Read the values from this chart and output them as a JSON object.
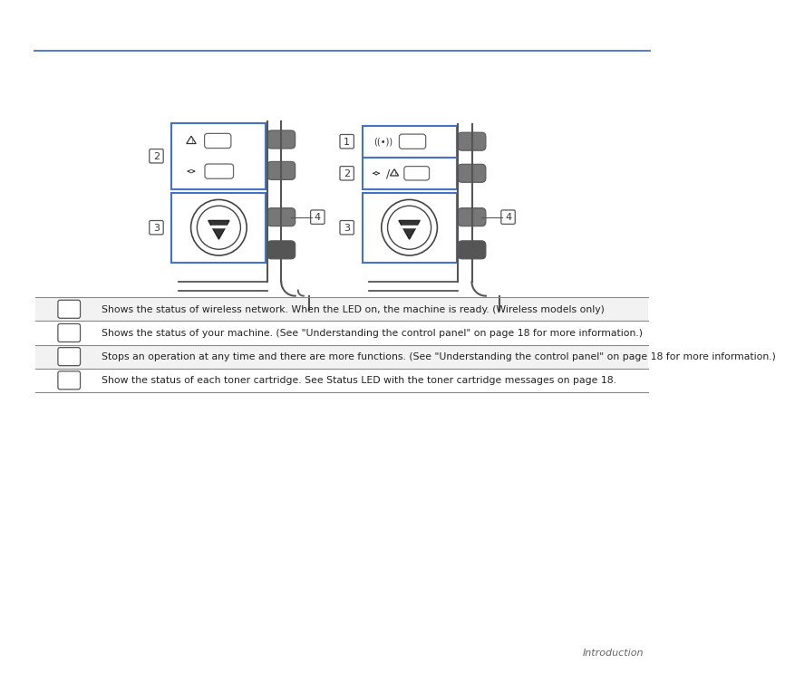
{
  "bg_color": "#ffffff",
  "line_color": "#4472c4",
  "text_color": "#000000",
  "header_line_color": "#4472c4",
  "table_rows": [
    {
      "text": "Shows the status of wireless network. When the LED on, the machine is ready. (Wireless models only)",
      "bg": "#f2f2f2"
    },
    {
      "text": "Shows the status of your machine. (See \"Understanding the control panel\" on page 18 for more information.)",
      "bg": "#ffffff"
    },
    {
      "text": "Stops an operation at any time and there are more functions. (See \"Understanding the control panel\" on page 18 for more information.)",
      "bg": "#f2f2f2"
    },
    {
      "text": "Show the status of each toner cartridge. See Status LED with the toner cartridge messages on page 18.",
      "bg": "#ffffff"
    }
  ],
  "footer_text": "Introduction"
}
